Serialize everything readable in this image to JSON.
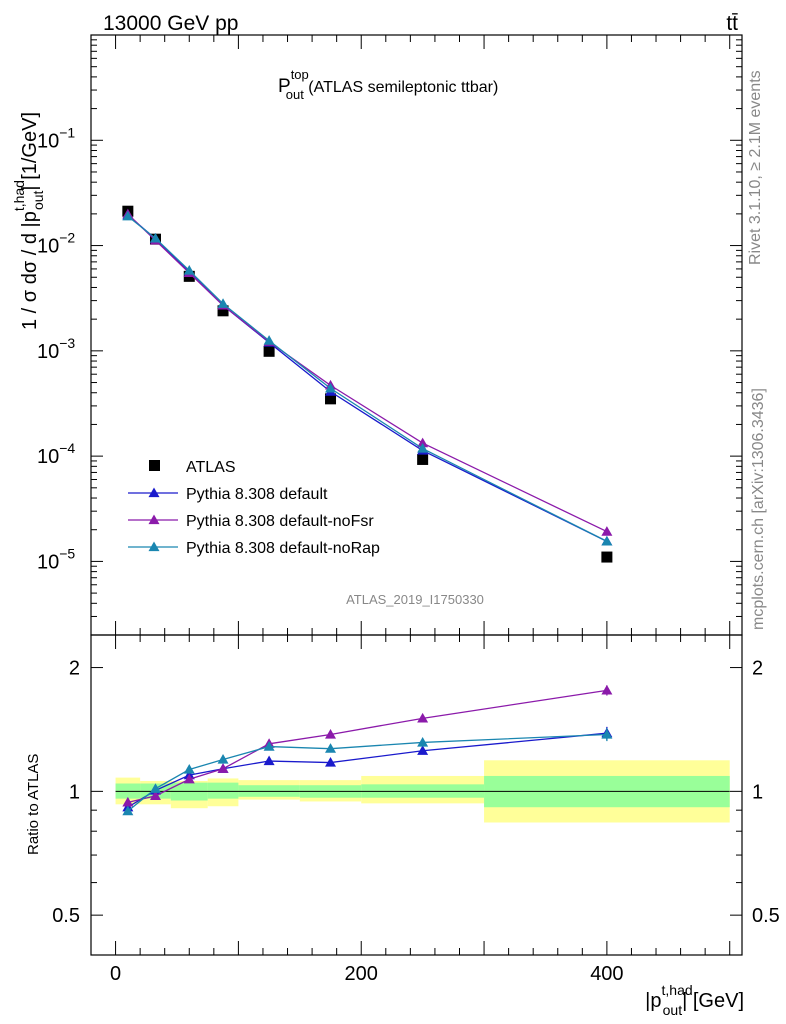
{
  "header": {
    "left": "13000 GeV pp",
    "right": "tt̄"
  },
  "side_labels": {
    "rivet": "Rivet 3.1.10, ≥ 2.1M events",
    "mcplots": "mcplots.cern.ch [arXiv:1306.3436]"
  },
  "analysis_tag": "ATLAS_2019_I1750330",
  "chart_data": [
    {
      "type": "scatter",
      "panel": "main",
      "title": {
        "main": "P",
        "sup": "top",
        "sub": "out",
        "rest": " (ATLAS semileptonic ttbar)"
      },
      "ylabel": {
        "pre": "1 / σ dσ / d |p",
        "sup": "t,had",
        "sub": "out",
        "post": "| [1/GeV]"
      },
      "yscale": "log",
      "ylim": [
        2e-06,
        1
      ],
      "xlim": [
        -20,
        510
      ],
      "y_ticks": [
        {
          "v": 0.1,
          "base": "10",
          "exp": "−1"
        },
        {
          "v": 0.01,
          "base": "10",
          "exp": "−2"
        },
        {
          "v": 0.001,
          "base": "10",
          "exp": "−3"
        },
        {
          "v": 0.0001,
          "base": "10",
          "exp": "−4"
        },
        {
          "v": 1e-05,
          "base": "10",
          "exp": "−5"
        }
      ],
      "legend_position": "lower-left",
      "x": [
        10,
        32.5,
        60,
        87.5,
        125,
        175,
        250,
        400
      ],
      "series": [
        {
          "name": "ATLAS",
          "marker": "square",
          "color": "#000000",
          "values": [
            0.0212,
            0.0115,
            0.0051,
            0.0024,
            0.00099,
            0.00035,
            9.3e-05,
            1.1e-05
          ]
        },
        {
          "name": "Pythia 8.308 default",
          "marker": "triangle",
          "color": "#1a1acc",
          "values": [
            0.0194,
            0.0116,
            0.0056,
            0.0027,
            0.0012,
            0.00041,
            0.000113,
            1.55e-05
          ]
        },
        {
          "name": "Pythia 8.308 default-noFsr",
          "marker": "triangle",
          "color": "#8b1aaa",
          "values": [
            0.0199,
            0.0112,
            0.0055,
            0.0027,
            0.00122,
            0.00047,
            0.000133,
            1.92e-05
          ]
        },
        {
          "name": "Pythia 8.308 default-noRap",
          "marker": "triangle",
          "color": "#1a86b0",
          "values": [
            0.019,
            0.0117,
            0.0058,
            0.0028,
            0.00125,
            0.00044,
            0.000118,
            1.55e-05
          ]
        }
      ]
    },
    {
      "type": "line",
      "panel": "ratio",
      "ylabel": "Ratio to ATLAS",
      "xlabel": {
        "pre": "|p",
        "sup": "t,had",
        "sub": "out",
        "post": "| [GeV]"
      },
      "yscale": "log",
      "ylim": [
        0.4,
        2.4
      ],
      "xlim": [
        -20,
        510
      ],
      "x_ticks": [
        0,
        200,
        400
      ],
      "y_ticks": [
        {
          "v": 0.5,
          "label": "0.5"
        },
        {
          "v": 1,
          "label": "1"
        },
        {
          "v": 2,
          "label": "2"
        }
      ],
      "bands": {
        "edges": [
          0,
          20,
          45,
          75,
          100,
          150,
          200,
          300,
          500
        ],
        "green_lo": [
          0.96,
          0.96,
          0.95,
          0.96,
          0.97,
          0.965,
          0.965,
          0.915
        ],
        "green_hi": [
          1.045,
          1.045,
          1.05,
          1.05,
          1.035,
          1.035,
          1.04,
          1.09
        ],
        "yellow_lo": [
          0.93,
          0.93,
          0.91,
          0.92,
          0.955,
          0.945,
          0.935,
          0.84
        ],
        "yellow_hi": [
          1.08,
          1.06,
          1.06,
          1.075,
          1.065,
          1.065,
          1.09,
          1.19
        ]
      },
      "x": [
        10,
        32.5,
        60,
        87.5,
        125,
        175,
        250,
        400
      ],
      "series": [
        {
          "name": "Pythia 8.308 default",
          "color": "#1a1acc",
          "values": [
            0.915,
            1.005,
            1.095,
            1.135,
            1.185,
            1.175,
            1.255,
            1.385
          ],
          "err": [
            0.01,
            0.01,
            0.01,
            0.01,
            0.01,
            0.01,
            0.015,
            0.05
          ]
        },
        {
          "name": "Pythia 8.308 default-noFsr",
          "color": "#8b1aaa",
          "values": [
            0.94,
            0.975,
            1.07,
            1.135,
            1.305,
            1.375,
            1.505,
            1.76
          ],
          "err": [
            0.01,
            0.01,
            0.01,
            0.01,
            0.01,
            0.01,
            0.015,
            0.05
          ]
        },
        {
          "name": "Pythia 8.308 default-noRap",
          "color": "#1a86b0",
          "values": [
            0.895,
            1.015,
            1.13,
            1.195,
            1.285,
            1.27,
            1.315,
            1.375
          ],
          "err": [
            0.01,
            0.01,
            0.01,
            0.01,
            0.01,
            0.01,
            0.015,
            0.05
          ]
        }
      ]
    }
  ]
}
